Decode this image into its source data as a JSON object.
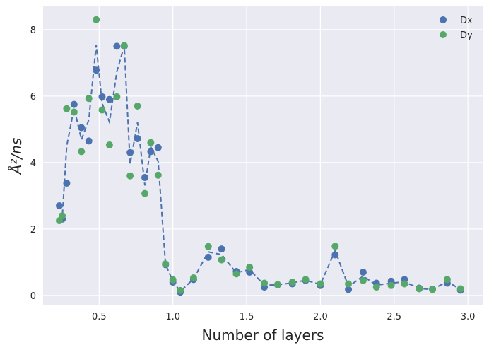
{
  "chart_data": {
    "type": "scatter",
    "xlabel": "Number of layers",
    "ylabel": "Å²/ns",
    "xlim": [
      0.12,
      3.1
    ],
    "ylim": [
      -0.3,
      8.7
    ],
    "xticks": [
      0.5,
      1.0,
      1.5,
      2.0,
      2.5,
      3.0
    ],
    "xtick_labels": [
      "0.5",
      "1.0",
      "1.5",
      "2.0",
      "2.5",
      "3.0"
    ],
    "yticks": [
      0,
      2,
      4,
      6,
      8
    ],
    "ytick_labels": [
      "0",
      "2",
      "4",
      "6",
      "8"
    ],
    "grid": true,
    "legend_position": "top-right",
    "colors": {
      "Dx": "#4c72b0",
      "Dy": "#55a868",
      "fit": "#4c72b0",
      "background": "#eaeaf2"
    },
    "series": [
      {
        "name": "Dx",
        "x": [
          0.23,
          0.25,
          0.28,
          0.33,
          0.38,
          0.43,
          0.48,
          0.52,
          0.57,
          0.62,
          0.67,
          0.71,
          0.76,
          0.81,
          0.85,
          0.9,
          0.95,
          1.0,
          1.05,
          1.14,
          1.24,
          1.33,
          1.43,
          1.52,
          1.62,
          1.71,
          1.81,
          1.9,
          2.0,
          2.1,
          2.19,
          2.29,
          2.38,
          2.48,
          2.57,
          2.67,
          2.76,
          2.86,
          2.95
        ],
        "y": [
          2.7,
          2.3,
          3.38,
          5.75,
          5.05,
          4.65,
          6.78,
          5.98,
          5.9,
          7.5,
          7.5,
          4.3,
          4.72,
          3.55,
          4.33,
          4.45,
          0.93,
          0.4,
          0.1,
          0.48,
          1.15,
          1.4,
          0.72,
          0.7,
          0.25,
          0.32,
          0.35,
          0.45,
          0.3,
          1.22,
          0.18,
          0.7,
          0.37,
          0.43,
          0.48,
          0.22,
          0.19,
          0.37,
          0.16
        ]
      },
      {
        "name": "Dy",
        "x": [
          0.23,
          0.25,
          0.28,
          0.33,
          0.38,
          0.43,
          0.48,
          0.52,
          0.57,
          0.62,
          0.67,
          0.71,
          0.76,
          0.81,
          0.85,
          0.9,
          0.95,
          1.0,
          1.05,
          1.14,
          1.24,
          1.33,
          1.43,
          1.52,
          1.62,
          1.71,
          1.81,
          1.9,
          2.0,
          2.1,
          2.19,
          2.29,
          2.38,
          2.48,
          2.57,
          2.67,
          2.76,
          2.86,
          2.95
        ],
        "y": [
          2.25,
          2.4,
          5.62,
          5.52,
          4.33,
          5.93,
          8.3,
          5.58,
          4.53,
          5.98,
          7.52,
          3.6,
          5.7,
          3.07,
          4.6,
          3.62,
          0.95,
          0.47,
          0.15,
          0.53,
          1.47,
          1.07,
          0.65,
          0.85,
          0.37,
          0.33,
          0.4,
          0.48,
          0.35,
          1.48,
          0.35,
          0.45,
          0.25,
          0.3,
          0.35,
          0.2,
          0.18,
          0.48,
          0.2
        ]
      }
    ],
    "fit_line": {
      "style": "dashed",
      "x": [
        0.23,
        0.25,
        0.28,
        0.33,
        0.38,
        0.43,
        0.48,
        0.52,
        0.57,
        0.62,
        0.67,
        0.71,
        0.76,
        0.81,
        0.85,
        0.9,
        0.95,
        1.0,
        1.05,
        1.14,
        1.24,
        1.33,
        1.43,
        1.52,
        1.62,
        1.71,
        1.81,
        1.9,
        2.0,
        2.1,
        2.19,
        2.29,
        2.38,
        2.48,
        2.57,
        2.67,
        2.76,
        2.86,
        2.95
      ],
      "y": [
        2.47,
        2.35,
        4.5,
        5.64,
        4.69,
        5.29,
        7.54,
        5.78,
        5.22,
        6.74,
        7.51,
        3.95,
        5.21,
        3.31,
        4.47,
        4.04,
        0.94,
        0.43,
        0.12,
        0.5,
        1.31,
        1.23,
        0.68,
        0.78,
        0.31,
        0.32,
        0.38,
        0.46,
        0.33,
        1.35,
        0.27,
        0.58,
        0.31,
        0.37,
        0.41,
        0.21,
        0.18,
        0.42,
        0.18
      ]
    }
  }
}
